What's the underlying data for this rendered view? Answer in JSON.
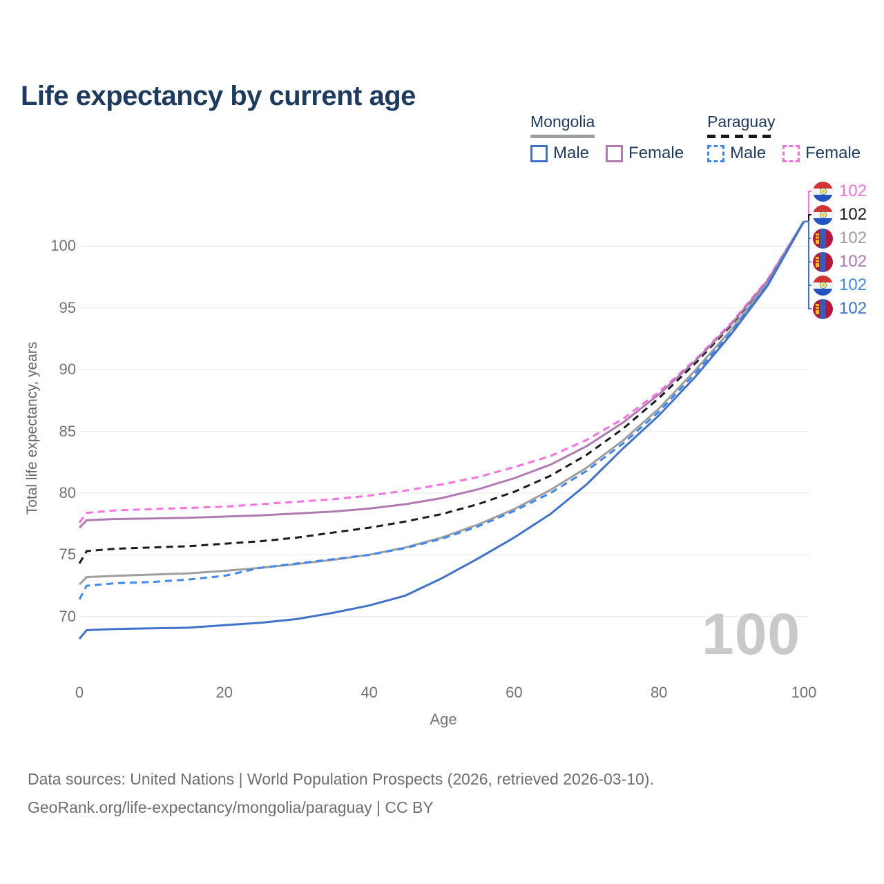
{
  "title": "Life expectancy by current age",
  "legend": {
    "groups": [
      {
        "label": "Mongolia",
        "line_style": "solid",
        "line_color": "#9e9e9e",
        "items": [
          {
            "label": "Male",
            "color": "#3f72c8",
            "dashed": false
          },
          {
            "label": "Female",
            "color": "#b07ab0",
            "dashed": false
          }
        ]
      },
      {
        "label": "Paraguay",
        "line_style": "dashed",
        "line_color": "#1a1a1a",
        "items": [
          {
            "label": "Male",
            "color": "#3f87f2",
            "dashed": true
          },
          {
            "label": "Female",
            "color": "#fa70e2",
            "dashed": true
          }
        ]
      }
    ]
  },
  "chart_data": {
    "type": "line",
    "title": "Life expectancy by current age",
    "xlabel": "Age",
    "ylabel": "Total life expectancy, years",
    "xlim": [
      0,
      100
    ],
    "ylim": [
      66.5,
      103
    ],
    "xticks": [
      0,
      20,
      40,
      60,
      80,
      100
    ],
    "yticks": [
      70,
      75,
      80,
      85,
      90,
      95,
      100
    ],
    "grid": "horizontal-only",
    "legend_position": "top-right",
    "watermark_age_counter": "100",
    "x": [
      0,
      1,
      5,
      10,
      15,
      20,
      25,
      30,
      35,
      40,
      45,
      50,
      55,
      60,
      65,
      70,
      75,
      80,
      85,
      90,
      95,
      100
    ],
    "series": [
      {
        "name": "Paraguay Female",
        "key": "paraguay-female",
        "country": "Paraguay",
        "sex": "Female",
        "color": "#fa70e2",
        "dashed": true,
        "flag": "py",
        "end_label": "102",
        "label_row": 0,
        "values": [
          77.6,
          78.4,
          78.6,
          78.7,
          78.8,
          78.9,
          79.1,
          79.3,
          79.5,
          79.8,
          80.2,
          80.7,
          81.3,
          82.1,
          83.0,
          84.3,
          86.0,
          88.2,
          90.8,
          93.8,
          97.3,
          102
        ]
      },
      {
        "name": "Paraguay (both sexes)",
        "key": "paraguay-all",
        "country": "Paraguay",
        "sex": "All",
        "color": "#1a1a1a",
        "dashed": true,
        "flag": "py",
        "end_label": "102",
        "label_row": 1,
        "values": [
          74.3,
          75.3,
          75.5,
          75.6,
          75.7,
          75.9,
          76.1,
          76.4,
          76.8,
          77.2,
          77.7,
          78.3,
          79.1,
          80.1,
          81.4,
          83.1,
          85.2,
          87.7,
          90.5,
          93.6,
          97.2,
          102
        ]
      },
      {
        "name": "Mongolia (both sexes)",
        "key": "mongolia-all",
        "country": "Mongolia",
        "sex": "All",
        "color": "#9e9e9e",
        "dashed": false,
        "flag": "mn",
        "end_label": "102",
        "label_row": 2,
        "values": [
          72.6,
          73.2,
          73.3,
          73.4,
          73.5,
          73.7,
          73.95,
          74.25,
          74.6,
          75.0,
          75.6,
          76.4,
          77.45,
          78.7,
          80.25,
          82.05,
          84.25,
          86.85,
          89.95,
          93.25,
          97.0,
          102
        ]
      },
      {
        "name": "Mongolia Female",
        "key": "mongolia-female",
        "country": "Mongolia",
        "sex": "Female",
        "color": "#b07ab0",
        "dashed": false,
        "flag": "mn",
        "end_label": "102",
        "label_row": 3,
        "values": [
          77.2,
          77.8,
          77.9,
          77.95,
          78.0,
          78.1,
          78.2,
          78.35,
          78.5,
          78.75,
          79.1,
          79.6,
          80.3,
          81.2,
          82.3,
          83.8,
          85.7,
          88.0,
          90.7,
          93.7,
          97.2,
          102
        ]
      },
      {
        "name": "Paraguay Male",
        "key": "paraguay-male",
        "country": "Paraguay",
        "sex": "Male",
        "color": "#3f87f2",
        "dashed": true,
        "flag": "py",
        "end_label": "102",
        "label_row": 4,
        "values": [
          71.4,
          72.5,
          72.7,
          72.8,
          73.0,
          73.3,
          73.95,
          74.3,
          74.65,
          75.0,
          75.55,
          76.3,
          77.3,
          78.55,
          80.0,
          81.8,
          84.0,
          86.6,
          89.7,
          93.05,
          96.9,
          102
        ]
      },
      {
        "name": "Mongolia Male",
        "key": "mongolia-male",
        "country": "Mongolia",
        "sex": "Male",
        "color": "#3f72c8",
        "dashed": false,
        "flag": "mn",
        "end_label": "102",
        "label_row": 5,
        "values": [
          68.2,
          68.9,
          69.0,
          69.05,
          69.1,
          69.3,
          69.5,
          69.8,
          70.3,
          70.9,
          71.7,
          73.1,
          74.7,
          76.4,
          78.3,
          80.7,
          83.6,
          86.3,
          89.4,
          92.9,
          96.8,
          102
        ]
      }
    ]
  },
  "footer": {
    "line1": "Data sources: United Nations | World Population Prospects (2026, retrieved 2026-03-10).",
    "line2": "GeoRank.org/life-expectancy/mongolia/paraguay | CC BY"
  }
}
